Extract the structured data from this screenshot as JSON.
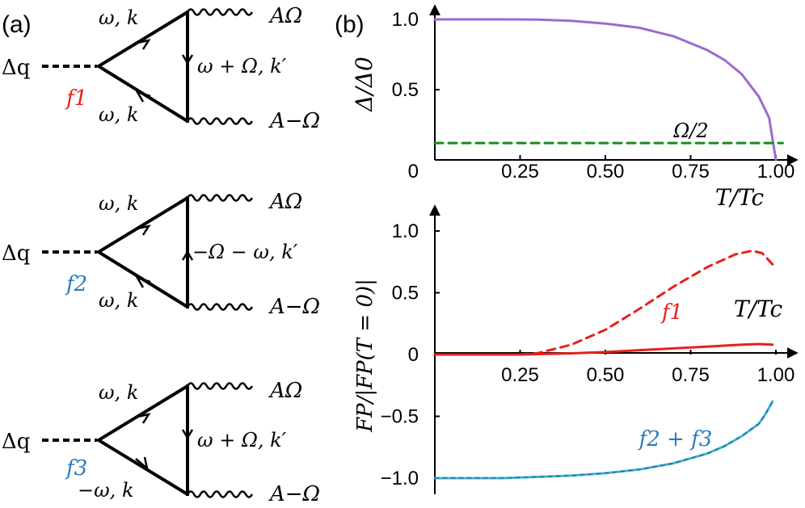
{
  "panel_a": {
    "label": "(a)",
    "diagrams": [
      {
        "source": "Δq",
        "f_label": "f1",
        "f_color": "#e8201c",
        "top_line": "ω, k",
        "vertical": "ω + Ω, k′",
        "bottom_line": "ω, k",
        "out_top": "AΩ",
        "out_bottom": "A−Ω"
      },
      {
        "source": "Δq",
        "f_label": "f2",
        "f_color": "#2b7bbf",
        "top_line": "ω, k",
        "vertical": "−Ω − ω, k′",
        "bottom_line": "ω, k",
        "out_top": "AΩ",
        "out_bottom": "A−Ω"
      },
      {
        "source": "Δq",
        "f_label": "f3",
        "f_color": "#2b7bbf",
        "top_line": "ω, k",
        "vertical": "ω + Ω, k′",
        "bottom_line": "−ω, k",
        "out_top": "AΩ",
        "out_bottom": "A−Ω"
      }
    ]
  },
  "panel_b": {
    "label": "(b)"
  },
  "chart_data": [
    {
      "type": "line",
      "xlabel": "T/Tc",
      "ylabel": "Δ/Δ0",
      "xlim": [
        0,
        1.0
      ],
      "ylim": [
        0,
        1.0
      ],
      "x_ticks": [
        "0.25",
        "0.50",
        "0.75",
        "1.00"
      ],
      "y_ticks": [
        "0",
        "0.5",
        "1.0"
      ],
      "annotations": [
        "Ω/2"
      ],
      "series": [
        {
          "color": "#9b6bd0",
          "style": "solid",
          "x": [
            0,
            0.1,
            0.2,
            0.3,
            0.4,
            0.5,
            0.6,
            0.7,
            0.8,
            0.85,
            0.9,
            0.95,
            0.98,
            1.0
          ],
          "y": [
            1.0,
            1.0,
            1.0,
            0.999,
            0.99,
            0.97,
            0.94,
            0.88,
            0.78,
            0.71,
            0.61,
            0.45,
            0.3,
            0.0
          ]
        },
        {
          "name": "Ω/2",
          "color": "#1a8a1a",
          "style": "dashed",
          "x": [
            0,
            1.02
          ],
          "y": [
            0.12,
            0.12
          ]
        }
      ]
    },
    {
      "type": "line",
      "xlabel": "T/Tc",
      "ylabel": "FP/|FP(T = 0)|",
      "xlim": [
        0,
        1.0
      ],
      "ylim": [
        -1.0,
        1.0
      ],
      "x_ticks": [
        "0.25",
        "0.50",
        "0.75",
        "1.00"
      ],
      "y_ticks": [
        "1.0",
        "0.5",
        "0",
        "-0.5",
        "-1.0"
      ],
      "annotations": [
        "f1",
        "f2 + f3"
      ],
      "series": [
        {
          "name": "f1",
          "color": "#e8201c",
          "style": "dashed",
          "x": [
            0.25,
            0.3,
            0.4,
            0.5,
            0.6,
            0.7,
            0.8,
            0.88,
            0.93,
            0.96,
            0.99
          ],
          "y": [
            0.0,
            0.01,
            0.08,
            0.2,
            0.37,
            0.55,
            0.71,
            0.81,
            0.84,
            0.82,
            0.73
          ]
        },
        {
          "name": "f1",
          "color": "#e8201c",
          "style": "solid",
          "x": [
            0,
            0.25,
            0.4,
            0.5,
            0.6,
            0.7,
            0.8,
            0.9,
            0.95,
            0.99
          ],
          "y": [
            0.0,
            0.0,
            0.01,
            0.02,
            0.035,
            0.05,
            0.065,
            0.08,
            0.085,
            0.08
          ]
        },
        {
          "name": "f2 + f3",
          "color": "#3fb6d8",
          "style": "solid",
          "x": [
            0,
            0.2,
            0.3,
            0.4,
            0.5,
            0.6,
            0.7,
            0.8,
            0.85,
            0.9,
            0.95,
            0.97,
            0.99
          ],
          "y": [
            -1.0,
            -1.0,
            -0.99,
            -0.98,
            -0.96,
            -0.93,
            -0.88,
            -0.8,
            -0.74,
            -0.66,
            -0.56,
            -0.48,
            -0.38
          ]
        }
      ]
    }
  ]
}
